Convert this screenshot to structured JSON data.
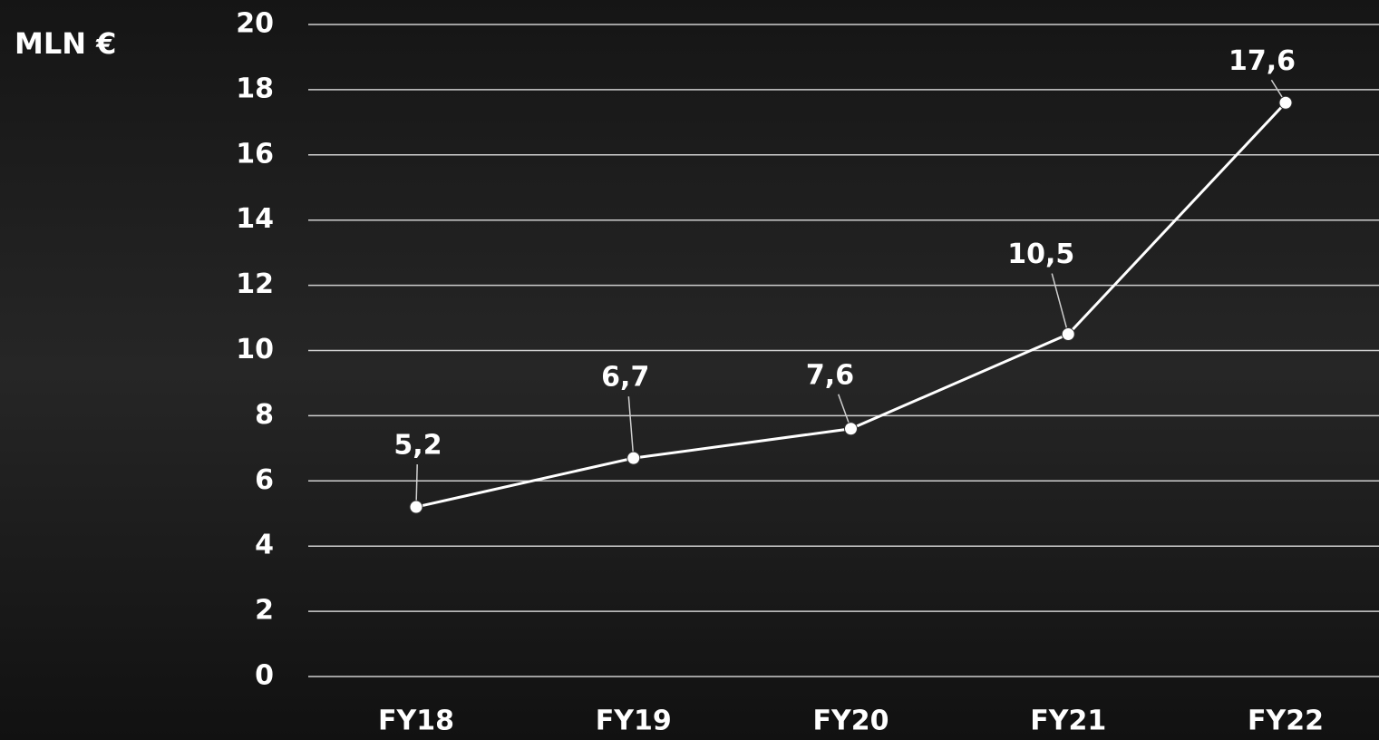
{
  "chart_data": {
    "type": "line",
    "y_label": "MLN €",
    "categories": [
      "FY18",
      "FY19",
      "FY20",
      "FY21",
      "FY22"
    ],
    "values": [
      5.2,
      6.7,
      7.6,
      10.5,
      17.6
    ],
    "value_labels": [
      "5,2",
      "6,7",
      "7,6",
      "10,5",
      "17,6"
    ],
    "color": "#ffffff",
    "ylim": [
      0,
      20
    ],
    "yticks": [
      0,
      2,
      4,
      6,
      8,
      10,
      12,
      14,
      16,
      18,
      20
    ],
    "grid": true
  }
}
